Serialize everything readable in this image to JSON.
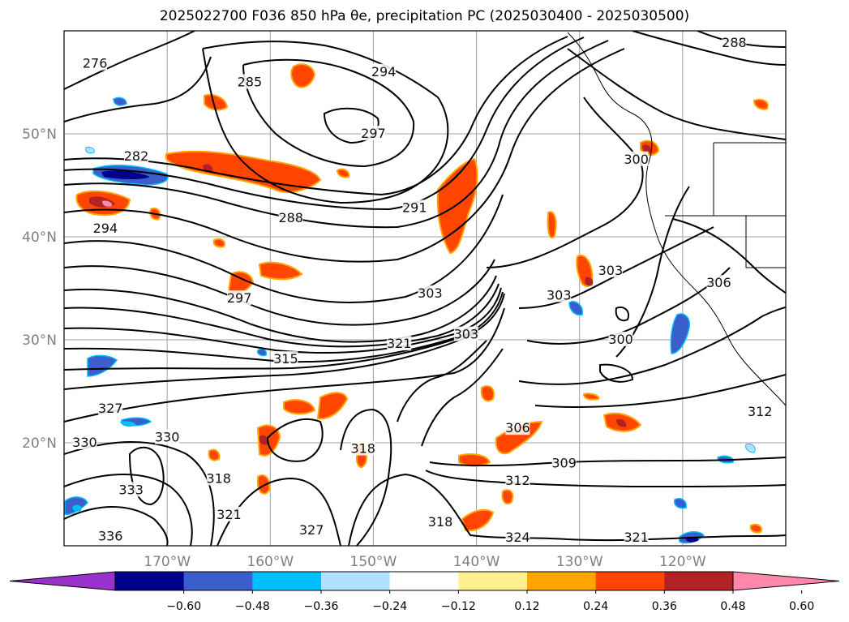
{
  "title": "2025022700 F036 850 hPa θe, precipitation PC (2025030400 - 2025030500)",
  "map": {
    "lon_range": [
      -180,
      -110
    ],
    "lat_range": [
      10,
      60
    ],
    "lon_ticks": [
      {
        "lon": -170,
        "label": "170°W"
      },
      {
        "lon": -160,
        "label": "160°W"
      },
      {
        "lon": -150,
        "label": "150°W"
      },
      {
        "lon": -140,
        "label": "140°W"
      },
      {
        "lon": -130,
        "label": "130°W"
      },
      {
        "lon": -120,
        "label": "120°W"
      }
    ],
    "lat_ticks": [
      {
        "lat": 50,
        "label": "50°N"
      },
      {
        "lat": 40,
        "label": "40°N"
      },
      {
        "lat": 30,
        "label": "30°N"
      },
      {
        "lat": 20,
        "label": "20°N"
      }
    ],
    "grid": true,
    "contour_labels": [
      {
        "text": "276",
        "lon": -177,
        "lat": 56.8
      },
      {
        "text": "285",
        "lon": -162,
        "lat": 55
      },
      {
        "text": "294",
        "lon": -149,
        "lat": 56
      },
      {
        "text": "297",
        "lon": -150,
        "lat": 50
      },
      {
        "text": "282",
        "lon": -173,
        "lat": 47.8
      },
      {
        "text": "288",
        "lon": -158,
        "lat": 41.8
      },
      {
        "text": "291",
        "lon": -146,
        "lat": 42.8
      },
      {
        "text": "294",
        "lon": -176,
        "lat": 40.8
      },
      {
        "text": "297",
        "lon": -163,
        "lat": 34
      },
      {
        "text": "303",
        "lon": -144.5,
        "lat": 34.5
      },
      {
        "text": "303",
        "lon": -132,
        "lat": 34.3
      },
      {
        "text": "303",
        "lon": -127,
        "lat": 36.7
      },
      {
        "text": "306",
        "lon": -116.5,
        "lat": 35.5
      },
      {
        "text": "300",
        "lon": -126,
        "lat": 30
      },
      {
        "text": "300",
        "lon": -124.5,
        "lat": 47.5
      },
      {
        "text": "303",
        "lon": -141,
        "lat": 30.5
      },
      {
        "text": "315",
        "lon": -158.5,
        "lat": 28.1
      },
      {
        "text": "321",
        "lon": -147.5,
        "lat": 29.6
      },
      {
        "text": "327",
        "lon": -175.5,
        "lat": 23.3
      },
      {
        "text": "330",
        "lon": -178,
        "lat": 20
      },
      {
        "text": "330",
        "lon": -170,
        "lat": 20.5
      },
      {
        "text": "333",
        "lon": -173.5,
        "lat": 15.4
      },
      {
        "text": "318",
        "lon": -165,
        "lat": 16.5
      },
      {
        "text": "321",
        "lon": -164,
        "lat": 13
      },
      {
        "text": "327",
        "lon": -156,
        "lat": 11.5
      },
      {
        "text": "336",
        "lon": -175.5,
        "lat": 10.9
      },
      {
        "text": "318",
        "lon": -151,
        "lat": 19.4
      },
      {
        "text": "306",
        "lon": -136,
        "lat": 21.4
      },
      {
        "text": "309",
        "lon": -131.5,
        "lat": 18
      },
      {
        "text": "312",
        "lon": -136,
        "lat": 16.3
      },
      {
        "text": "318",
        "lon": -143.5,
        "lat": 12.3
      },
      {
        "text": "324",
        "lon": -136,
        "lat": 10.8
      },
      {
        "text": "321",
        "lon": -124.5,
        "lat": 10.8
      },
      {
        "text": "288",
        "lon": -115,
        "lat": 58.8
      },
      {
        "text": "312",
        "lon": -112.5,
        "lat": 23
      }
    ]
  },
  "colorbar": {
    "colors": [
      "#9932cc",
      "#00008b",
      "#3a5fcd",
      "#00bfff",
      "#b0e2ff",
      "#ffffff",
      "#fff08f",
      "#ffa500",
      "#ff4500",
      "#b22222",
      "#ff88aa"
    ],
    "tick_labels": [
      "−0.60",
      "−0.48",
      "−0.36",
      "−0.24",
      "−0.12",
      "0.12",
      "0.24",
      "0.36",
      "0.48",
      "0.60"
    ]
  }
}
